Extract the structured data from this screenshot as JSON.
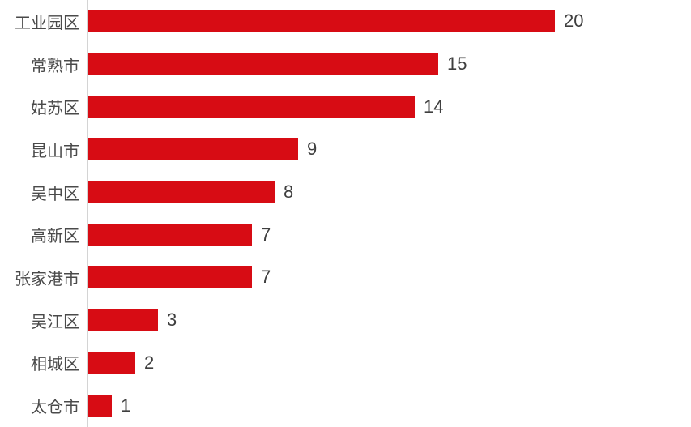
{
  "chart_data": {
    "type": "bar",
    "orientation": "horizontal",
    "title": "",
    "xlabel": "",
    "ylabel": "",
    "categories": [
      "工业园区",
      "常熟市",
      "姑苏区",
      "昆山市",
      "吴中区",
      "高新区",
      "张家港市",
      "吴江区",
      "相城区",
      "太仓市"
    ],
    "values": [
      20,
      15,
      14,
      9,
      8,
      7,
      7,
      3,
      2,
      1
    ],
    "xlim": [
      0,
      20
    ],
    "grid": false,
    "value_labels_shown": true,
    "legend": null,
    "colors": {
      "bar": "#d70c14",
      "axis_line": "#d4d4d4",
      "category_label": "#4a4a4a",
      "value_label": "#3f3f3f",
      "background": "#ffffff"
    }
  }
}
